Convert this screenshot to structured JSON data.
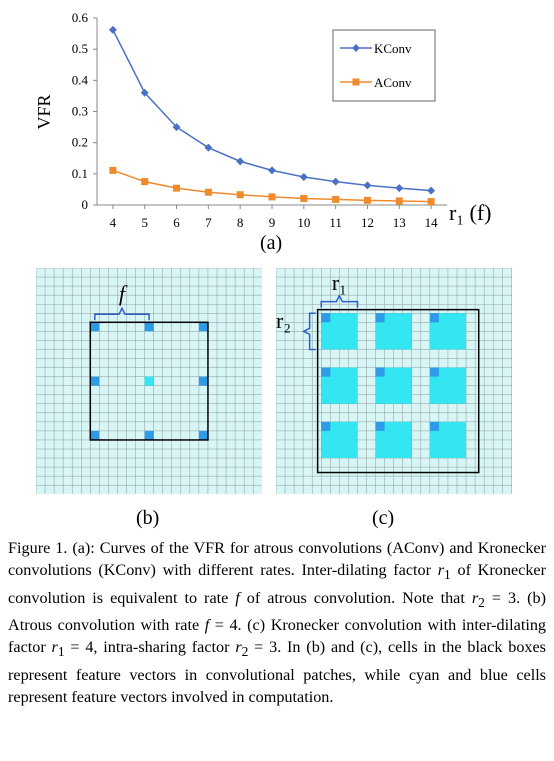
{
  "chart_data": {
    "type": "line",
    "x": [
      4,
      5,
      6,
      7,
      8,
      9,
      10,
      11,
      12,
      13,
      14
    ],
    "series": [
      {
        "name": "KConv",
        "values": [
          0.562,
          0.36,
          0.25,
          0.184,
          0.14,
          0.111,
          0.09,
          0.075,
          0.063,
          0.054,
          0.046
        ],
        "color": "#4a72c4",
        "marker": "diamond"
      },
      {
        "name": "AConv",
        "values": [
          0.111,
          0.075,
          0.054,
          0.041,
          0.033,
          0.026,
          0.021,
          0.018,
          0.015,
          0.013,
          0.011
        ],
        "color": "#f08a2c",
        "marker": "square"
      }
    ],
    "ylabel": "VFR",
    "xlabel": "r₁ (f)",
    "ylim": [
      0,
      0.6
    ],
    "yticks": [
      "0",
      "0.1",
      "0.2",
      "0.3",
      "0.4",
      "0.5",
      "0.6"
    ],
    "xticks": [
      "4",
      "5",
      "6",
      "7",
      "8",
      "9",
      "10",
      "11",
      "12",
      "13",
      "14"
    ],
    "legend": "top-right",
    "grid": false
  },
  "panels": {
    "a": "(a)",
    "b": "(b)",
    "c": "(c)",
    "b_label": "f",
    "c_label_r1": "r₁",
    "c_label_r2": "r₂"
  },
  "grid_colors": {
    "background": "#d9f6f6",
    "line": "#8a9a9a",
    "cyan": "#33e6f2",
    "blue": "#2e9be6",
    "brace": "#2d5fc7"
  },
  "caption": {
    "fig": "Figure 1.",
    "s1": " (a): Curves of the VFR for atrous convolutions (AConv) and Kronecker convolutions (KConv) with different rates. Inter-dilating factor ",
    "r1": "r",
    "r1sub": "1",
    "s2": " of Kronecker convolution is equivalent to rate ",
    "f1": "f",
    "s3": " of atrous convolution. Note that ",
    "r2a": "r",
    "r2asub": "2",
    "s4": " = 3. (b) Atrous convolution with rate ",
    "f2": "f",
    "s5": " = 4. (c) Kronecker convolution with inter-dilating factor ",
    "r1b": "r",
    "r1bsub": "1",
    "s6": " = 4, intra-sharing factor ",
    "r2b": "r",
    "r2bsub": "2",
    "s7": " = 3. In (b) and (c), cells in the black boxes represent feature vectors in convolutional patches, while cyan and blue cells represent feature vectors involved in computation."
  }
}
